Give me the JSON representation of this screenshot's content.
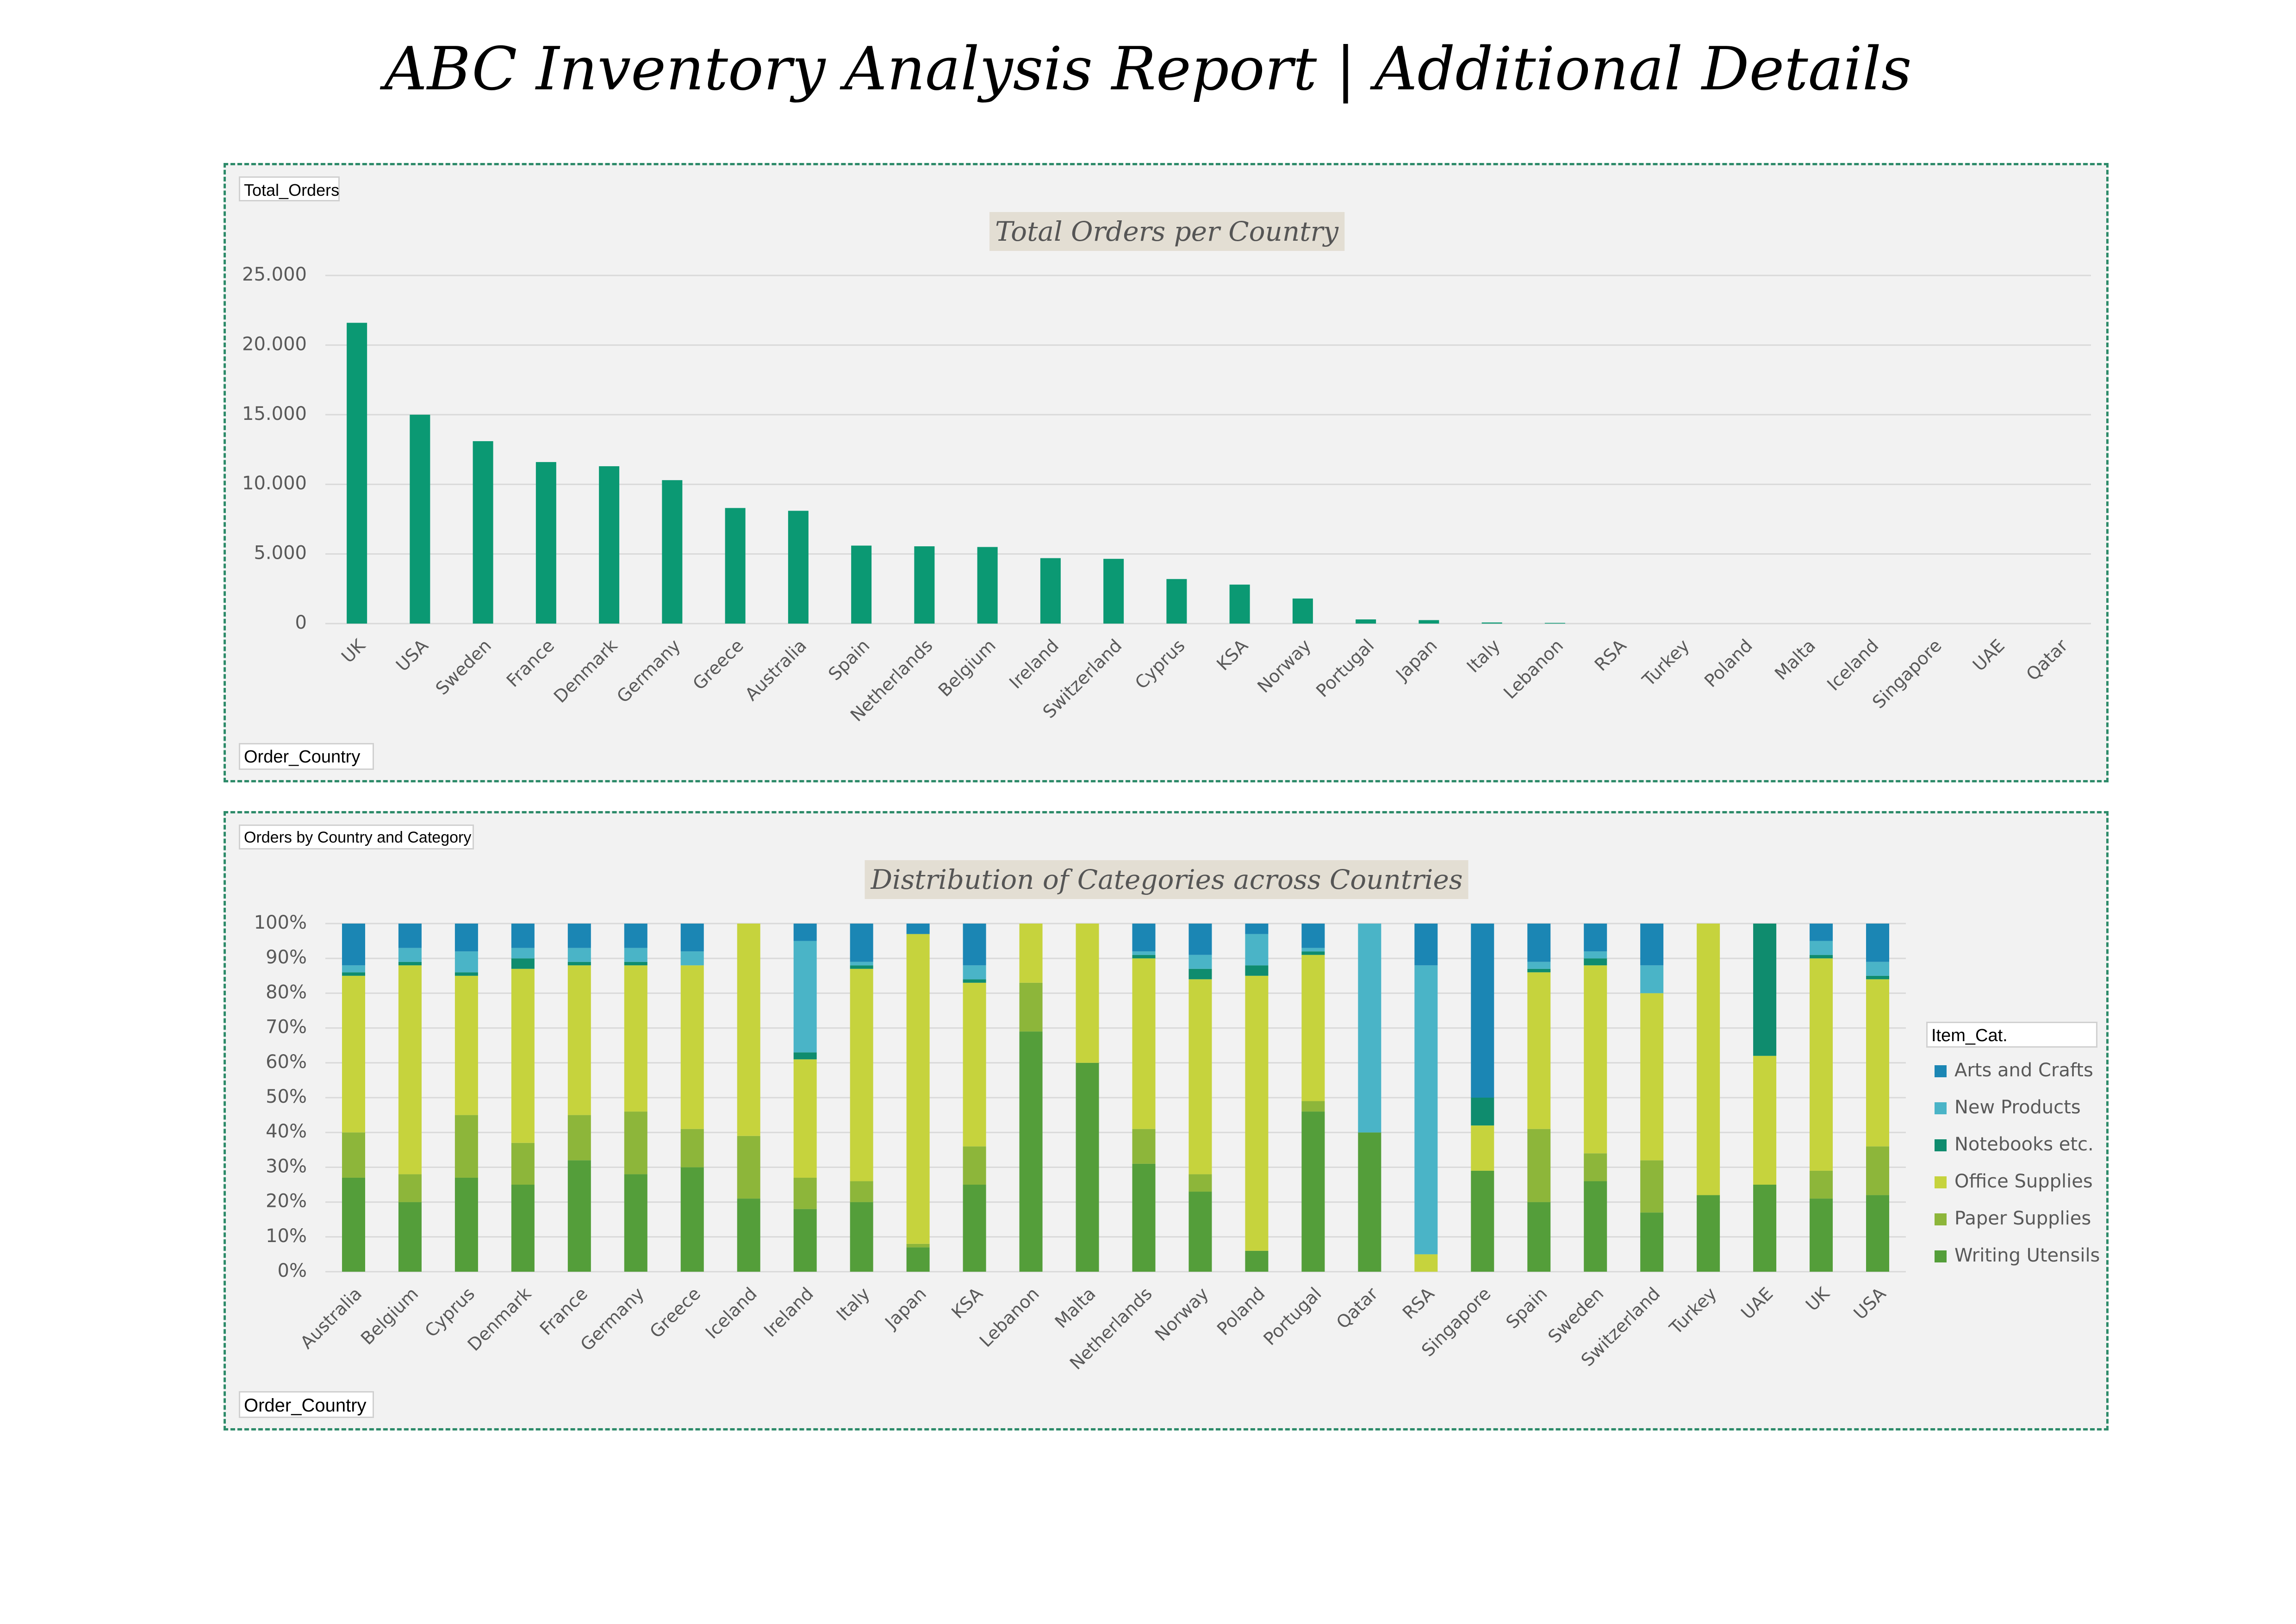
{
  "report": {
    "title": "ABC Inventory Analysis Report | Additional Details"
  },
  "colors": {
    "border": "#2e8b6a",
    "panel_bg": "#f2f2f2",
    "bar_total": "#0b9973",
    "arts_and_crafts": "#1b86b4",
    "new_products": "#4ab4c7",
    "notebooks": "#0f8c6e",
    "office_supplies": "#c6d33d",
    "paper_supplies": "#8db63a",
    "writing_utensils": "#549e3a"
  },
  "panel1": {
    "value_button": "Total_Orders",
    "axis_button": "Order_Country"
  },
  "panel2": {
    "report_button": "Orders by Country and Category",
    "axis_button": "Order_Country",
    "legend_button": "Item_Cat."
  },
  "chart_data": [
    {
      "type": "bar",
      "title": "Total Orders per Country",
      "xlabel": "",
      "ylabel": "",
      "ylim": [
        0,
        25000
      ],
      "yticks": [
        "0",
        "5.000",
        "10.000",
        "15.000",
        "20.000",
        "25.000"
      ],
      "grid": true,
      "categories": [
        "UK",
        "USA",
        "Sweden",
        "France",
        "Denmark",
        "Germany",
        "Greece",
        "Australia",
        "Spain",
        "Netherlands",
        "Belgium",
        "Ireland",
        "Switzerland",
        "Cyprus",
        "KSA",
        "Norway",
        "Portugal",
        "Japan",
        "Italy",
        "Lebanon",
        "RSA",
        "Turkey",
        "Poland",
        "Malta",
        "Iceland",
        "Singapore",
        "UAE",
        "Qatar"
      ],
      "values": [
        21600,
        15000,
        13100,
        11600,
        11300,
        10300,
        8300,
        8100,
        5600,
        5550,
        5500,
        4700,
        4650,
        3200,
        2800,
        1800,
        300,
        250,
        80,
        50,
        0,
        0,
        0,
        0,
        0,
        0,
        0,
        0
      ]
    },
    {
      "type": "bar",
      "stacked": true,
      "percent": true,
      "title": "Distribution of Categories across Countries",
      "xlabel": "",
      "ylabel": "",
      "ylim": [
        0,
        100
      ],
      "yticks": [
        "0%",
        "10%",
        "20%",
        "30%",
        "40%",
        "50%",
        "60%",
        "70%",
        "80%",
        "90%",
        "100%"
      ],
      "grid": true,
      "legend_position": "right",
      "categories": [
        "Australia",
        "Belgium",
        "Cyprus",
        "Denmark",
        "France",
        "Germany",
        "Greece",
        "Iceland",
        "Ireland",
        "Italy",
        "Japan",
        "KSA",
        "Lebanon",
        "Malta",
        "Netherlands",
        "Norway",
        "Poland",
        "Portugal",
        "Qatar",
        "RSA",
        "Singapore",
        "Spain",
        "Sweden",
        "Switzerland",
        "Turkey",
        "UAE",
        "UK",
        "USA"
      ],
      "series": [
        {
          "name": "Writing Utensils",
          "color": "#549e3a",
          "values": [
            27,
            20,
            27,
            25,
            32,
            28,
            30,
            21,
            18,
            20,
            7,
            25,
            69,
            60,
            31,
            23,
            6,
            46,
            40,
            0,
            29,
            20,
            26,
            17,
            22,
            25,
            21,
            22
          ]
        },
        {
          "name": "Paper Supplies",
          "color": "#8db63a",
          "values": [
            13,
            8,
            18,
            12,
            13,
            18,
            11,
            18,
            9,
            6,
            1,
            11,
            14,
            0,
            10,
            5,
            0,
            3,
            0,
            0,
            0,
            21,
            8,
            15,
            0,
            0,
            8,
            14
          ]
        },
        {
          "name": "Office Supplies",
          "color": "#c6d33d",
          "values": [
            45,
            60,
            40,
            50,
            43,
            42,
            47,
            61,
            34,
            61,
            89,
            47,
            17,
            40,
            49,
            56,
            79,
            42,
            0,
            5,
            13,
            45,
            54,
            48,
            78,
            37,
            61,
            48
          ]
        },
        {
          "name": "Notebooks etc.",
          "color": "#0f8c6e",
          "values": [
            1,
            1,
            1,
            3,
            1,
            1,
            0,
            0,
            2,
            1,
            0,
            1,
            0,
            0,
            1,
            3,
            3,
            1,
            0,
            0,
            8,
            1,
            2,
            0,
            0,
            38,
            1,
            1
          ]
        },
        {
          "name": "New Products",
          "color": "#4ab4c7",
          "values": [
            2,
            4,
            6,
            3,
            4,
            4,
            4,
            0,
            32,
            1,
            0,
            4,
            0,
            0,
            1,
            4,
            9,
            1,
            60,
            83,
            0,
            2,
            2,
            8,
            0,
            0,
            4,
            4
          ]
        },
        {
          "name": "Arts and Crafts",
          "color": "#1b86b4",
          "values": [
            12,
            7,
            8,
            7,
            7,
            7,
            8,
            0,
            5,
            11,
            3,
            12,
            0,
            0,
            8,
            9,
            3,
            7,
            0,
            12,
            50,
            11,
            8,
            12,
            0,
            0,
            5,
            11
          ]
        }
      ]
    }
  ]
}
